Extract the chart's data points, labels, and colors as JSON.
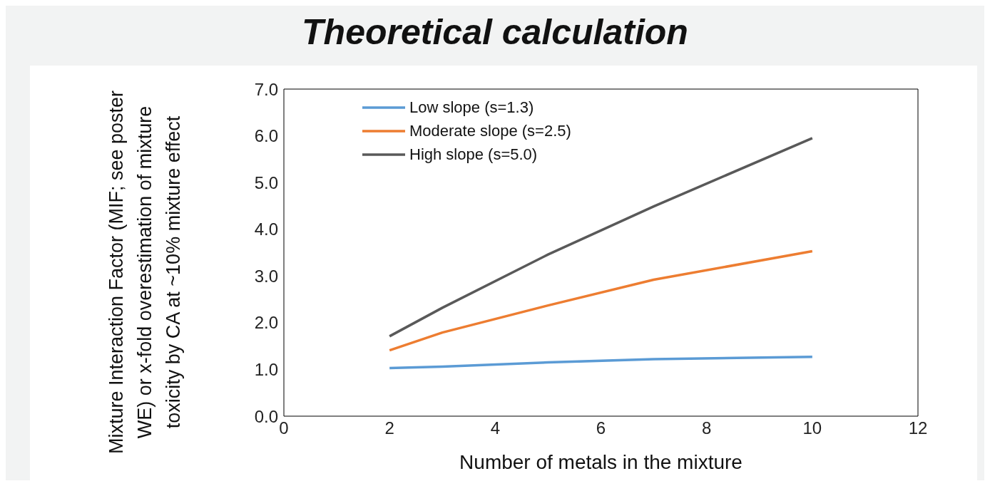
{
  "chart_data": {
    "type": "line",
    "title": "Theoretical calculation",
    "xlabel": "Number of metals in the mixture",
    "ylabel": "Mixture Interaction Factor (MIF; see poster WE) or x-fold overestimation of mixture toxicity by CA at ~10% mixture effect",
    "x": [
      2,
      3,
      5,
      7,
      10
    ],
    "series": [
      {
        "name": "Low slope (s=1.3)",
        "color": "#5b9bd5",
        "values": [
          1.03,
          1.06,
          1.15,
          1.22,
          1.27
        ]
      },
      {
        "name": "Moderate slope (s=2.5)",
        "color": "#ed7d31",
        "values": [
          1.41,
          1.79,
          2.37,
          2.92,
          3.53
        ]
      },
      {
        "name": "High slope (s=5.0)",
        "color": "#595959",
        "values": [
          1.71,
          2.32,
          3.46,
          4.49,
          5.95
        ]
      }
    ],
    "xlim": [
      0,
      12
    ],
    "xticks": [
      0,
      2,
      4,
      6,
      8,
      10,
      12
    ],
    "ylim": [
      0,
      7
    ],
    "yticks": [
      {
        "value": 0,
        "label": "0.0"
      },
      {
        "value": 1,
        "label": "1.0"
      },
      {
        "value": 2,
        "label": "2.0"
      },
      {
        "value": 3,
        "label": "3.0"
      },
      {
        "value": 4,
        "label": "4.0"
      },
      {
        "value": 5,
        "label": "5.0"
      },
      {
        "value": 6,
        "label": "6.0"
      },
      {
        "value": 7,
        "label": "7.0"
      }
    ],
    "grid": false,
    "legend": "top left",
    "marker": "none",
    "line_style": "solid"
  }
}
